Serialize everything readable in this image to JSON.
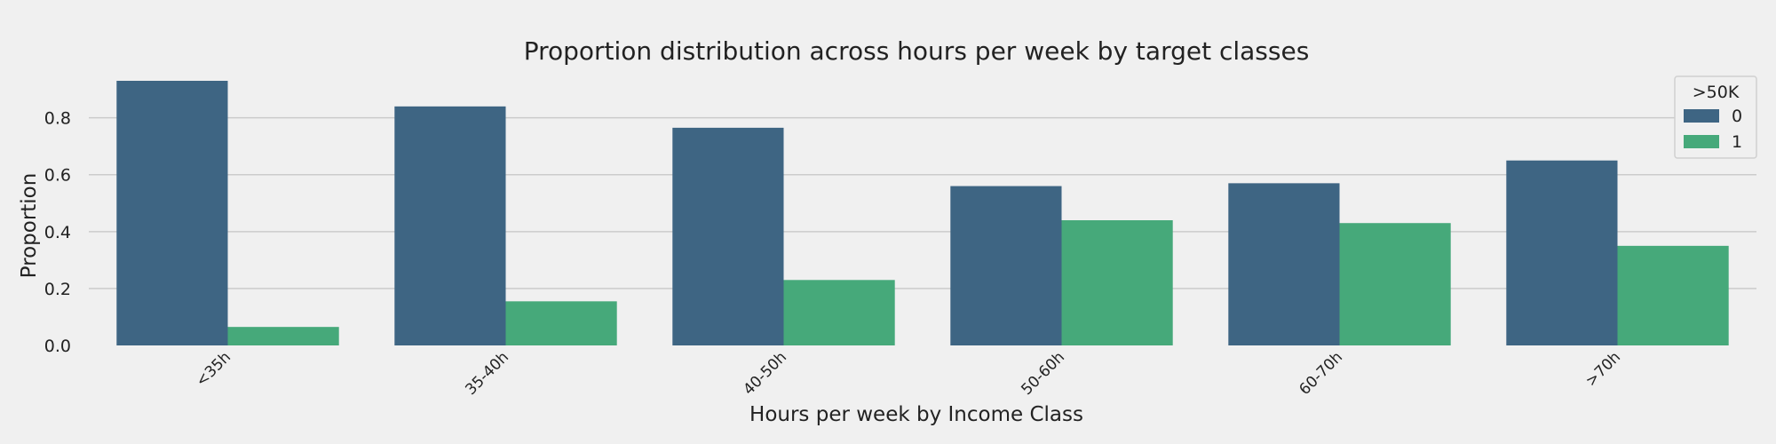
{
  "chart_data": {
    "type": "bar",
    "title": "Proportion distribution across hours per week by target classes",
    "xlabel": "Hours per week by Income Class",
    "ylabel": "Proportion",
    "categories": [
      "<35h",
      "35-40h",
      "40-50h",
      "50-60h",
      "60-70h",
      ">70h"
    ],
    "series": [
      {
        "name": "0",
        "values": [
          0.93,
          0.84,
          0.765,
          0.56,
          0.57,
          0.65
        ]
      },
      {
        "name": "1",
        "values": [
          0.065,
          0.155,
          0.23,
          0.44,
          0.43,
          0.35
        ]
      }
    ],
    "ylim": [
      0,
      0.93
    ],
    "yticks": [
      "0.0",
      "0.2",
      "0.4",
      "0.6",
      "0.8"
    ],
    "legend": {
      "title": ">50K",
      "position": "top-right"
    },
    "grid": true,
    "colors": [
      "#3e6583",
      "#46a97a"
    ],
    "background": "#f0f0f0"
  }
}
